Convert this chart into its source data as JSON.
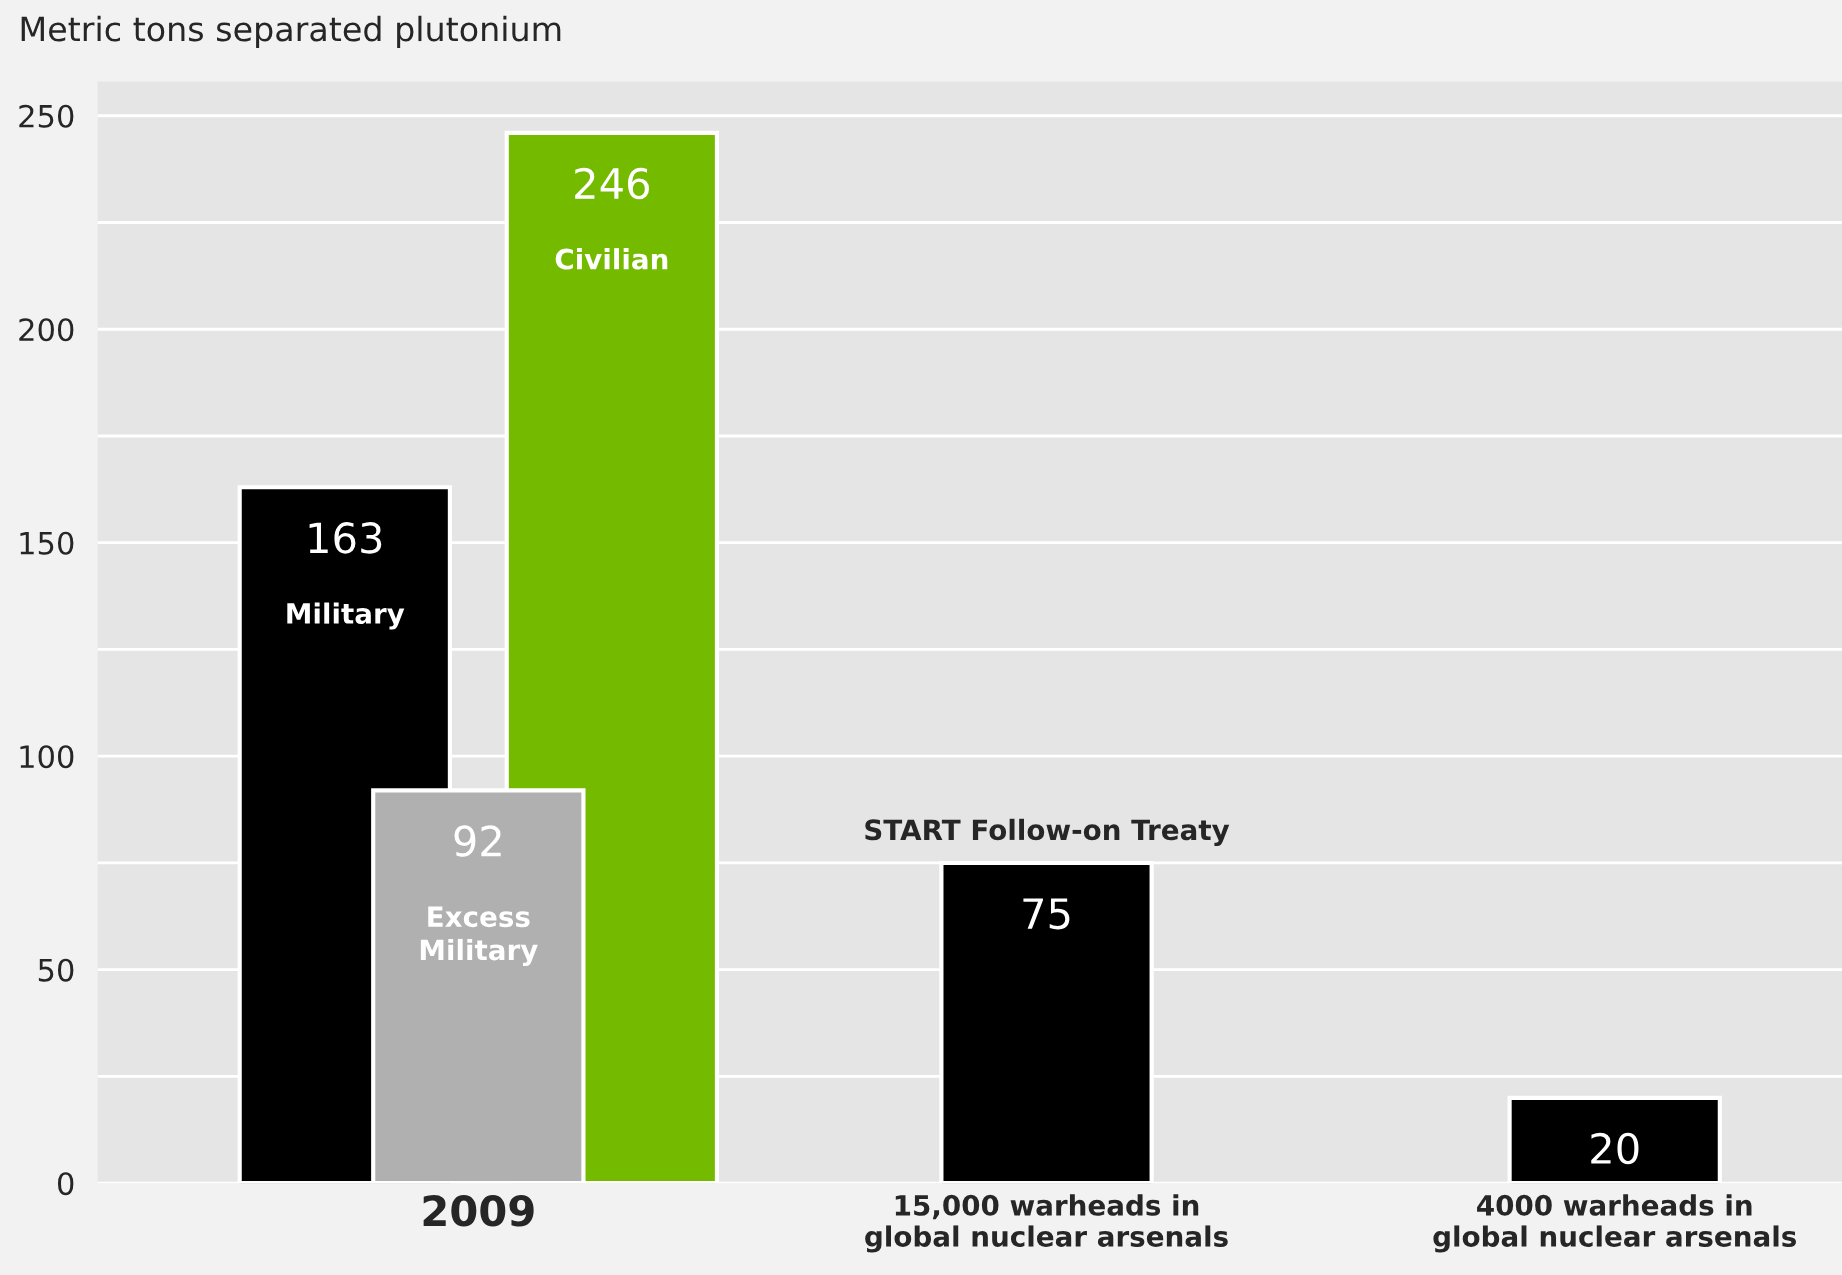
{
  "chart_data": {
    "type": "bar",
    "title": "Metric tons separated plutonium",
    "categories": [
      "2009",
      "15,000 warheads in\nglobal nuclear arsenals",
      "4000 warheads in\nglobal nuclear arsenals"
    ],
    "series": [
      {
        "name": "Military",
        "color": "#000000",
        "values": [
          163,
          null,
          null
        ]
      },
      {
        "name": "Excess\nMilitary",
        "color": "#b0b0b0",
        "values": [
          92,
          null,
          null
        ]
      },
      {
        "name": "Civilian",
        "color": "#74bb00",
        "values": [
          246,
          null,
          null
        ]
      },
      {
        "color": "#000000",
        "values": [
          null,
          75,
          20
        ]
      }
    ],
    "ylim": [
      0,
      258
    ],
    "yticks": [
      0,
      {
        "value": 25,
        "label": null
      },
      50,
      {
        "value": 75,
        "label": null
      },
      100,
      {
        "value": 125,
        "label": null
      },
      150,
      {
        "value": 175,
        "label": null
      },
      200,
      {
        "value": 225,
        "label": null
      },
      250
    ],
    "grid": "y",
    "data_labels": true,
    "legend": false,
    "annotations": [
      {
        "text": "START Follow-on Treaty",
        "x": "15,000 warheads in\nglobal nuclear arsenals",
        "y": 75
      }
    ]
  }
}
